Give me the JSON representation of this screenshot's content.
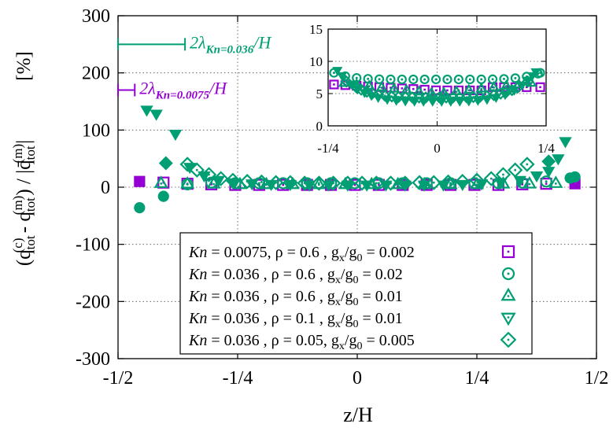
{
  "chart_data": [
    {
      "type": "scatter",
      "xlabel": "z/H",
      "ylabel_html": "(q<tspan>tot</tspan><tspan>(c)</tspan> - q<tspan>tot</tspan><tspan>(m)</tspan>) / |q̄<tspan>tot</tspan><tspan>(m)</tspan>|",
      "ylabel_unit": "[%]",
      "xlim": [
        -0.5,
        0.5
      ],
      "ylim": [
        -300,
        300
      ],
      "x_ticks": [
        {
          "v": -0.5,
          "label": "-1/2"
        },
        {
          "v": -0.25,
          "label": "-1/4"
        },
        {
          "v": 0,
          "label": "0"
        },
        {
          "v": 0.25,
          "label": "1/4"
        },
        {
          "v": 0.5,
          "label": "1/2"
        }
      ],
      "y_ticks": [
        -300,
        -200,
        -100,
        0,
        100,
        200,
        300
      ],
      "grid": true,
      "legend_position": "bottom-right",
      "series": [
        {
          "name": "Kn = 0.0075, ρ = 0.6 , gx/g0 = 0.002",
          "marker": "square",
          "color": "#9400d3",
          "points": [
            [
              -0.455,
              10
            ],
            [
              -0.405,
              8
            ],
            [
              -0.355,
              6
            ],
            [
              -0.305,
              5
            ],
            [
              -0.255,
              4
            ],
            [
              -0.205,
              4
            ],
            [
              -0.155,
              4
            ],
            [
              -0.105,
              4
            ],
            [
              -0.055,
              4
            ],
            [
              -0.005,
              4
            ],
            [
              0.045,
              4
            ],
            [
              0.095,
              4
            ],
            [
              0.145,
              4
            ],
            [
              0.195,
              4
            ],
            [
              0.245,
              4
            ],
            [
              0.295,
              4
            ],
            [
              0.345,
              5
            ],
            [
              0.395,
              6
            ],
            [
              0.455,
              6
            ]
          ]
        },
        {
          "name": "Kn = 0.036 , ρ = 0.6 , gx/g0 = 0.02",
          "marker": "circle",
          "color": "#009e73",
          "points": [
            [
              -0.455,
              -36
            ],
            [
              -0.405,
              -16
            ],
            [
              -0.355,
              5
            ],
            [
              -0.305,
              8
            ],
            [
              -0.255,
              7
            ],
            [
              -0.205,
              7
            ],
            [
              -0.155,
              7
            ],
            [
              -0.105,
              7
            ],
            [
              -0.055,
              7
            ],
            [
              -0.005,
              7
            ],
            [
              0.045,
              7
            ],
            [
              0.095,
              7
            ],
            [
              0.145,
              7
            ],
            [
              0.195,
              7
            ],
            [
              0.245,
              7
            ],
            [
              0.295,
              7
            ],
            [
              0.345,
              8
            ],
            [
              0.395,
              10
            ],
            [
              0.445,
              16
            ],
            [
              0.455,
              18
            ]
          ]
        },
        {
          "name": "Kn = 0.036 , ρ = 0.6 , gx/g0 = 0.01",
          "marker": "triangle-up",
          "color": "#009e73",
          "points": [
            [
              -0.41,
              7
            ],
            [
              -0.355,
              6
            ],
            [
              -0.3,
              6
            ],
            [
              -0.245,
              5
            ],
            [
              -0.19,
              5
            ],
            [
              -0.135,
              5
            ],
            [
              -0.08,
              5
            ],
            [
              -0.025,
              5
            ],
            [
              0.03,
              5
            ],
            [
              0.085,
              5
            ],
            [
              0.14,
              5
            ],
            [
              0.195,
              5
            ],
            [
              0.25,
              5
            ],
            [
              0.305,
              6
            ],
            [
              0.36,
              6
            ],
            [
              0.415,
              7
            ]
          ]
        },
        {
          "name": "Kn = 0.036 , ρ = 0.1 , gx/g0 = 0.01",
          "marker": "triangle-down",
          "color": "#009e73",
          "points": [
            [
              -0.44,
              135
            ],
            [
              -0.42,
              128
            ],
            [
              -0.38,
              93
            ],
            [
              -0.35,
              35
            ],
            [
              -0.32,
              20
            ],
            [
              -0.29,
              12
            ],
            [
              -0.26,
              8
            ],
            [
              -0.22,
              6
            ],
            [
              -0.18,
              5
            ],
            [
              -0.14,
              5
            ],
            [
              -0.1,
              4
            ],
            [
              -0.06,
              4
            ],
            [
              -0.02,
              4
            ],
            [
              0.02,
              4
            ],
            [
              0.06,
              4
            ],
            [
              0.1,
              4
            ],
            [
              0.14,
              4
            ],
            [
              0.18,
              4
            ],
            [
              0.22,
              5
            ],
            [
              0.26,
              6
            ],
            [
              0.3,
              8
            ],
            [
              0.34,
              12
            ],
            [
              0.375,
              20
            ],
            [
              0.4,
              28
            ],
            [
              0.42,
              50
            ],
            [
              0.435,
              80
            ]
          ]
        },
        {
          "name": "Kn = 0.036 , ρ = 0.05, gx/g0 = 0.005",
          "marker": "diamond",
          "color": "#009e73",
          "points": [
            [
              -0.4,
              42
            ],
            [
              -0.355,
              40
            ],
            [
              -0.335,
              30
            ],
            [
              -0.31,
              22
            ],
            [
              -0.285,
              15
            ],
            [
              -0.26,
              12
            ],
            [
              -0.23,
              10
            ],
            [
              -0.2,
              9
            ],
            [
              -0.17,
              8
            ],
            [
              -0.14,
              8
            ],
            [
              -0.11,
              7
            ],
            [
              -0.08,
              7
            ],
            [
              -0.05,
              7
            ],
            [
              -0.02,
              7
            ],
            [
              0.01,
              7
            ],
            [
              0.04,
              7
            ],
            [
              0.07,
              7
            ],
            [
              0.1,
              7
            ],
            [
              0.13,
              8
            ],
            [
              0.16,
              8
            ],
            [
              0.19,
              9
            ],
            [
              0.22,
              10
            ],
            [
              0.25,
              12
            ],
            [
              0.28,
              15
            ],
            [
              0.305,
              22
            ],
            [
              0.33,
              30
            ],
            [
              0.355,
              40
            ],
            [
              0.4,
              45
            ]
          ]
        }
      ],
      "annotations": [
        {
          "text_pre": "2λ",
          "sub": "Kn=0.036",
          "text_post": "/H",
          "color": "#009e73",
          "bar": [
            -0.5,
            -0.36
          ],
          "y": 250
        },
        {
          "text_pre": "2λ",
          "sub": "Kn=0.0075",
          "text_post": "/H",
          "color": "#9400d3",
          "bar": [
            -0.5,
            -0.465
          ],
          "y": 170
        }
      ]
    },
    {
      "type": "scatter",
      "inset": true,
      "xlim": [
        -0.25,
        0.25
      ],
      "ylim": [
        0,
        15
      ],
      "x_ticks": [
        {
          "v": -0.25,
          "label": "-1/4"
        },
        {
          "v": 0,
          "label": "0"
        },
        {
          "v": 0.25,
          "label": "1/4"
        }
      ],
      "y_ticks": [
        0,
        5,
        10,
        15
      ],
      "grid": true
    }
  ],
  "legend": [
    {
      "kn": "Kn",
      "rest": " = 0.0075, ρ = 0.6  , g",
      "sub1": "x",
      "mid": "/g",
      "sub2": "0",
      "end": " = 0.002",
      "marker": "square",
      "color": "#9400d3"
    },
    {
      "kn": "Kn",
      "rest": " = 0.036  , ρ = 0.6  , g",
      "sub1": "x",
      "mid": "/g",
      "sub2": "0",
      "end": " = 0.02",
      "marker": "circle",
      "color": "#009e73"
    },
    {
      "kn": "Kn",
      "rest": " = 0.036  , ρ = 0.6  , g",
      "sub1": "x",
      "mid": "/g",
      "sub2": "0",
      "end": " = 0.01",
      "marker": "triangle-up",
      "color": "#009e73"
    },
    {
      "kn": "Kn",
      "rest": " = 0.036  , ρ = 0.1  , g",
      "sub1": "x",
      "mid": "/g",
      "sub2": "0",
      "end": " = 0.01",
      "marker": "triangle-down",
      "color": "#009e73"
    },
    {
      "kn": "Kn",
      "rest": " = 0.036  , ρ = 0.05, g",
      "sub1": "x",
      "mid": "/g",
      "sub2": "0",
      "end": " = 0.005",
      "marker": "diamond",
      "color": "#009e73"
    }
  ]
}
